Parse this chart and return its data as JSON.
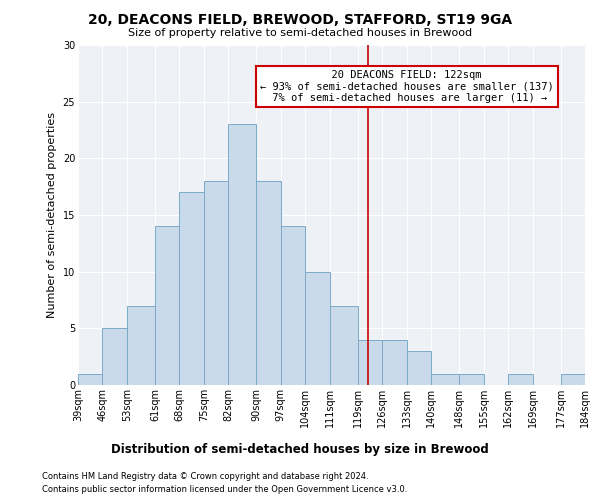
{
  "title": "20, DEACONS FIELD, BREWOOD, STAFFORD, ST19 9GA",
  "subtitle": "Size of property relative to semi-detached houses in Brewood",
  "xlabel_bottom": "Distribution of semi-detached houses by size in Brewood",
  "ylabel": "Number of semi-detached properties",
  "footer_line1": "Contains HM Land Registry data © Crown copyright and database right 2024.",
  "footer_line2": "Contains public sector information licensed under the Open Government Licence v3.0.",
  "bins": [
    39,
    46,
    53,
    61,
    68,
    75,
    82,
    90,
    97,
    104,
    111,
    119,
    126,
    133,
    140,
    148,
    155,
    162,
    169,
    177,
    184
  ],
  "counts": [
    1,
    5,
    7,
    14,
    17,
    18,
    23,
    18,
    14,
    10,
    7,
    4,
    4,
    3,
    1,
    1,
    0,
    1,
    0,
    1
  ],
  "bar_color": "#c9daea",
  "bar_edge_color": "#7aaac8",
  "vline_color": "#cc0000",
  "vline_x": 122,
  "annotation_title": "20 DEACONS FIELD: 122sqm",
  "annotation_line1": "← 93% of semi-detached houses are smaller (137)",
  "annotation_line2": "7% of semi-detached houses are larger (11) →",
  "annotation_box_color": "#cc0000",
  "ylim": [
    0,
    30
  ],
  "yticks": [
    0,
    5,
    10,
    15,
    20,
    25,
    30
  ],
  "tick_labels": [
    "39sqm",
    "46sqm",
    "53sqm",
    "61sqm",
    "68sqm",
    "75sqm",
    "82sqm",
    "90sqm",
    "97sqm",
    "104sqm",
    "111sqm",
    "119sqm",
    "126sqm",
    "133sqm",
    "140sqm",
    "148sqm",
    "155sqm",
    "162sqm",
    "169sqm",
    "177sqm",
    "184sqm"
  ],
  "bg_color": "#ffffff",
  "plot_bg_color": "#eef2f7",
  "grid_color": "#ffffff",
  "title_fontsize": 10,
  "subtitle_fontsize": 8,
  "ylabel_fontsize": 8,
  "tick_fontsize": 7,
  "footer_fontsize": 6,
  "ann_fontsize": 7.5
}
